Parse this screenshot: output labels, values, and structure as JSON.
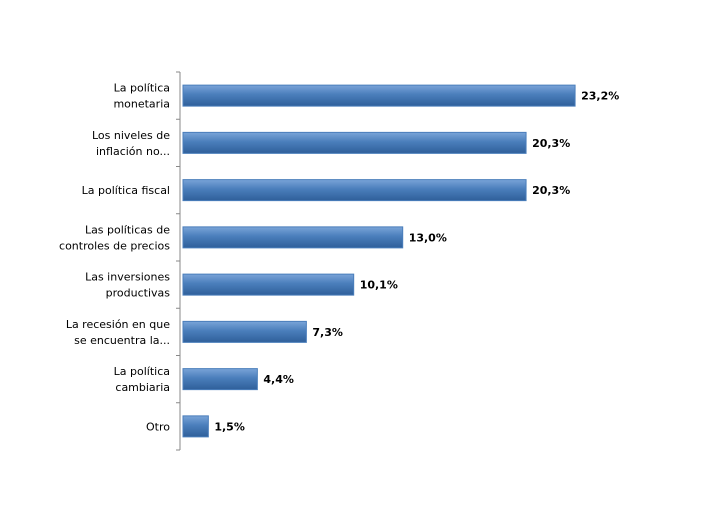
{
  "chart_data": {
    "type": "bar",
    "orientation": "horizontal",
    "color": "#4a7ebb",
    "categories": [
      "La política\nmonetaria",
      "Los niveles de\ninflación no...",
      "La política fiscal",
      "Las políticas de\ncontroles de precios",
      "Las inversiones\nproductivas",
      "La recesión en que\nse encuentra la...",
      "La política\ncambiaria",
      "Otro"
    ],
    "values": [
      23.2,
      20.3,
      20.3,
      13.0,
      10.1,
      7.3,
      4.4,
      1.5
    ],
    "value_labels": [
      "23,2%",
      "20,3%",
      "20,3%",
      "13,0%",
      "10,1%",
      "7,3%",
      "4,4%",
      "1,5%"
    ]
  }
}
